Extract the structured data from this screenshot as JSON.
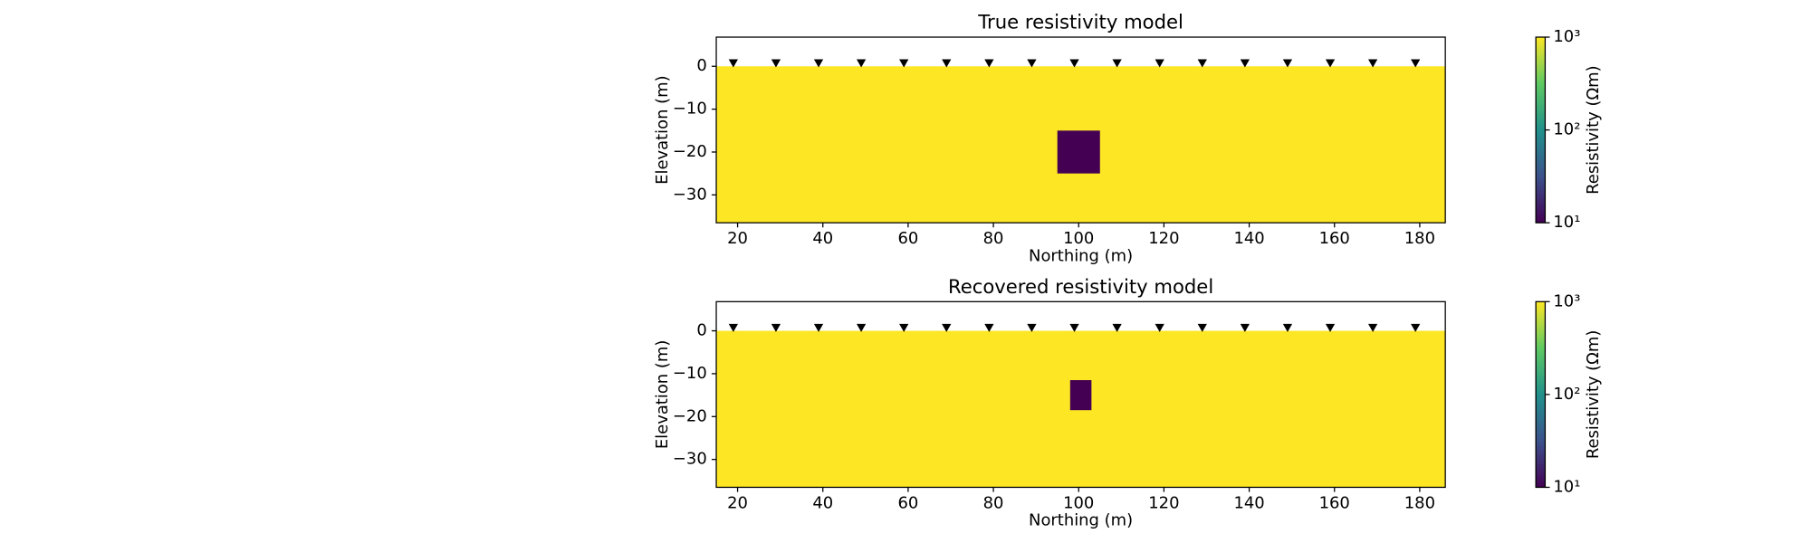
{
  "chart_data": [
    {
      "type": "model",
      "title": "True resistivity model",
      "xlabel": "Northing (m)",
      "ylabel": "Elevation (m)",
      "xlim": [
        15,
        186
      ],
      "xticks": [
        20,
        40,
        60,
        80,
        100,
        120,
        140,
        160,
        180
      ],
      "ylim": [
        -36.5,
        6.8
      ],
      "yticks": [
        {
          "value": 0,
          "label": "0"
        },
        {
          "value": -10,
          "label": "−10"
        },
        {
          "value": -20,
          "label": "−20"
        },
        {
          "value": -30,
          "label": "−30"
        }
      ],
      "surface_elevation": 0,
      "background_value": 1000,
      "block": {
        "x": [
          95,
          105
        ],
        "y": [
          -25,
          -15
        ],
        "value": 10
      },
      "electrodes_x": [
        19,
        29,
        39,
        49,
        59,
        69,
        79,
        89,
        99,
        109,
        119,
        129,
        139,
        149,
        159,
        169,
        179
      ],
      "electrode_elevation": 0,
      "colorbar": {
        "label": "Resistivity (Ωm)",
        "lim": [
          10,
          1000
        ],
        "log": true,
        "colormap": "viridis",
        "ticks": [
          {
            "value": 10,
            "label": "10¹"
          },
          {
            "value": 100,
            "label": "10²"
          },
          {
            "value": 1000,
            "label": "10³"
          }
        ]
      }
    },
    {
      "type": "model",
      "title": "Recovered resistivity model",
      "xlabel": "Northing (m)",
      "ylabel": "Elevation (m)",
      "xlim": [
        15,
        186
      ],
      "xticks": [
        20,
        40,
        60,
        80,
        100,
        120,
        140,
        160,
        180
      ],
      "ylim": [
        -36.5,
        6.8
      ],
      "yticks": [
        {
          "value": 0,
          "label": "0"
        },
        {
          "value": -10,
          "label": "−10"
        },
        {
          "value": -20,
          "label": "−20"
        },
        {
          "value": -30,
          "label": "−30"
        }
      ],
      "surface_elevation": 0,
      "background_value": 1000,
      "block": {
        "x": [
          98,
          103
        ],
        "y": [
          -18.5,
          -11.5
        ],
        "value": 10
      },
      "electrodes_x": [
        19,
        29,
        39,
        49,
        59,
        69,
        79,
        89,
        99,
        109,
        119,
        129,
        139,
        149,
        159,
        169,
        179
      ],
      "electrode_elevation": 0,
      "colorbar": {
        "label": "Resistivity (Ωm)",
        "lim": [
          10,
          1000
        ],
        "log": true,
        "colormap": "viridis",
        "ticks": [
          {
            "value": 10,
            "label": "10¹"
          },
          {
            "value": 100,
            "label": "10²"
          },
          {
            "value": 1000,
            "label": "10³"
          }
        ]
      }
    }
  ]
}
